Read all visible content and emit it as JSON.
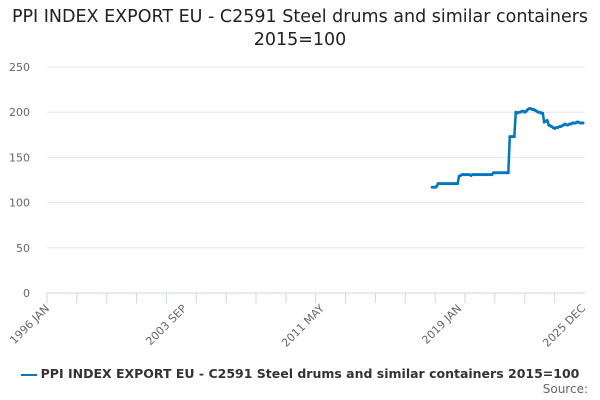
{
  "chart_data": {
    "type": "line",
    "title": "PPI INDEX EXPORT EU - C2591 Steel drums and similar containers 2015=100",
    "xlabel": "",
    "ylabel": "",
    "xlim": [
      "1996-01",
      "2025-12"
    ],
    "ylim": [
      0,
      250
    ],
    "yticks": [
      "0",
      "50",
      "100",
      "150",
      "200",
      "250"
    ],
    "xticks": [
      "1996 JAN",
      "2003 SEP",
      "2011 MAY",
      "2019 JAN",
      "2025 DEC"
    ],
    "grid": true,
    "legend": "bottom",
    "color": "#0077c0",
    "series": [
      {
        "name": "PPI INDEX EXPORT EU - C2591 Steel drums and similar containers 2015=100",
        "x": [
          "2017-07",
          "2017-08",
          "2017-09",
          "2017-10",
          "2017-11",
          "2017-12",
          "2018-01",
          "2018-02",
          "2018-03",
          "2018-04",
          "2018-05",
          "2018-06",
          "2018-07",
          "2018-08",
          "2018-09",
          "2018-10",
          "2018-11",
          "2018-12",
          "2019-01",
          "2019-02",
          "2019-03",
          "2019-04",
          "2019-05",
          "2019-06",
          "2019-07",
          "2019-08",
          "2019-09",
          "2019-10",
          "2019-11",
          "2019-12",
          "2020-01",
          "2020-02",
          "2020-03",
          "2020-04",
          "2020-05",
          "2020-06",
          "2020-07",
          "2020-08",
          "2020-09",
          "2020-10",
          "2020-11",
          "2020-12",
          "2021-01",
          "2021-02",
          "2021-03",
          "2021-04",
          "2021-05",
          "2021-06",
          "2021-07",
          "2021-08",
          "2021-09",
          "2021-10",
          "2021-11",
          "2021-12",
          "2022-01",
          "2022-02",
          "2022-03",
          "2022-04",
          "2022-05",
          "2022-06",
          "2022-07",
          "2022-08",
          "2022-09",
          "2022-10",
          "2022-11",
          "2022-12",
          "2023-01",
          "2023-02",
          "2023-03",
          "2023-04",
          "2023-05",
          "2023-06",
          "2023-07",
          "2023-08",
          "2023-09",
          "2023-10",
          "2023-11",
          "2023-12",
          "2024-01",
          "2024-02",
          "2024-03",
          "2024-04",
          "2024-05",
          "2024-06",
          "2024-07",
          "2024-08",
          "2024-09",
          "2024-10",
          "2024-11",
          "2024-12",
          "2025-01",
          "2025-02",
          "2025-03",
          "2025-04",
          "2025-05",
          "2025-06",
          "2025-07",
          "2025-08",
          "2025-09",
          "2025-10",
          "2025-11",
          "2025-12"
        ],
        "y": [
          117,
          117,
          117,
          118,
          121,
          121,
          121,
          121,
          121,
          121,
          121,
          121,
          121,
          121,
          121,
          121,
          121,
          121,
          129,
          130,
          131,
          131,
          131,
          131,
          131,
          131,
          130,
          131,
          131,
          131,
          131,
          131,
          131,
          131,
          131,
          131,
          131,
          131,
          131,
          131,
          131,
          133,
          133,
          133,
          133,
          133,
          133,
          133,
          133,
          133,
          133,
          133,
          173,
          173,
          173,
          173,
          200,
          199,
          200,
          200,
          201,
          201,
          200,
          201,
          203,
          204,
          204,
          203,
          203,
          202,
          201,
          200,
          200,
          199,
          199,
          189,
          190,
          191,
          186,
          185,
          184,
          183,
          182,
          183,
          183,
          184,
          184,
          185,
          186,
          187,
          186,
          186,
          187,
          187,
          188,
          188,
          188,
          189,
          189,
          188,
          188,
          188
        ]
      }
    ]
  },
  "source_label": "Source:"
}
